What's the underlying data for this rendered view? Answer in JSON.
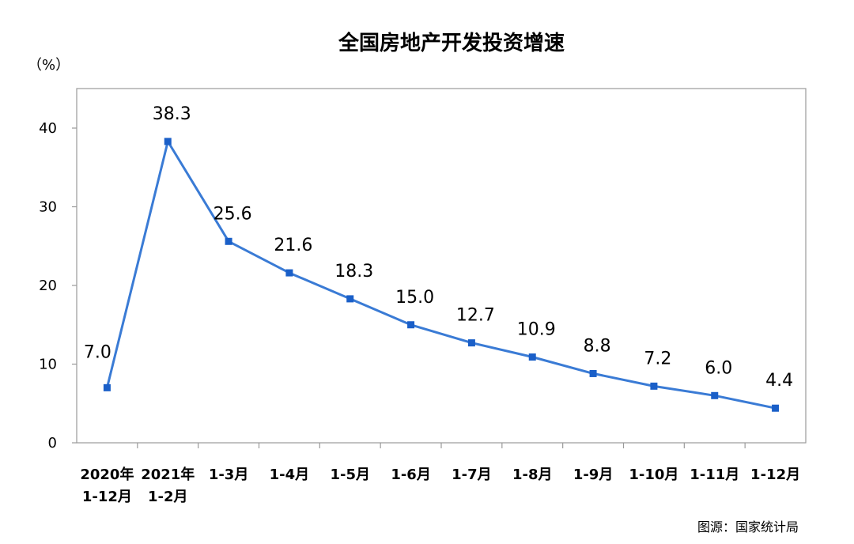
{
  "chart_data": {
    "type": "line",
    "title": "全国房地产开发投资增速",
    "ylabel": "（%）",
    "ylim": [
      0,
      45
    ],
    "yticks": [
      "0",
      "10",
      "20",
      "30",
      "40"
    ],
    "grid": false,
    "categories": [
      [
        "2020年",
        "1-12月"
      ],
      [
        "2021年",
        "1-2月"
      ],
      [
        "1-3月"
      ],
      [
        "1-4月"
      ],
      [
        "1-5月"
      ],
      [
        "1-6月"
      ],
      [
        "1-7月"
      ],
      [
        "1-8月"
      ],
      [
        "1-9月"
      ],
      [
        "1-10月"
      ],
      [
        "1-11月"
      ],
      [
        "1-12月"
      ]
    ],
    "series": [
      {
        "values": [
          7.0,
          38.3,
          25.6,
          21.6,
          18.3,
          15.0,
          12.7,
          10.9,
          8.8,
          7.2,
          6.0,
          4.4
        ],
        "labels": [
          "7.0",
          "38.3",
          "25.6",
          "21.6",
          "18.3",
          "15.0",
          "12.7",
          "10.9",
          "8.8",
          "7.2",
          "6.0",
          "4.4"
        ],
        "color": "#3a7bd5",
        "marker_color": "#1a5fc8"
      }
    ],
    "source": "图源：国家统计局"
  }
}
